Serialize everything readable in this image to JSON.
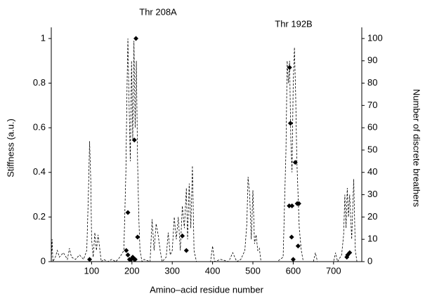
{
  "chart_data": {
    "type": "line",
    "x_label": "Amino–acid residue number",
    "y_label": "Stiffness (a.u.)",
    "y2_label": "Number of discrete breathers",
    "annotations": [
      "Thr 208A",
      "Thr 192B"
    ],
    "xlim": [
      0,
      770
    ],
    "xticks": [
      100,
      200,
      300,
      400,
      500,
      600,
      700
    ],
    "ylim": [
      0,
      1.05
    ],
    "yticks": [
      0,
      0.2,
      0.4,
      0.6,
      0.8,
      1
    ],
    "y2lim": [
      0,
      105
    ],
    "y2ticks": [
      0,
      10,
      20,
      30,
      40,
      50,
      60,
      70,
      80,
      90,
      100
    ],
    "series": [
      {
        "name": "Stiffness",
        "color": "#000000",
        "style": "dashed",
        "x": [
          0,
          2,
          4,
          10,
          15,
          20,
          30,
          40,
          45,
          50,
          60,
          70,
          80,
          88,
          92,
          95,
          98,
          100,
          104,
          108,
          112,
          116,
          120,
          124,
          130,
          140,
          150,
          160,
          170,
          180,
          185,
          188,
          190,
          193,
          196,
          199,
          202,
          205,
          208,
          211,
          214,
          217,
          220,
          225,
          230,
          245,
          250,
          255,
          260,
          265,
          270,
          275,
          285,
          290,
          295,
          300,
          305,
          310,
          315,
          320,
          325,
          330,
          335,
          338,
          342,
          346,
          350,
          354,
          360,
          380,
          395,
          400,
          405,
          420,
          440,
          450,
          460,
          470,
          480,
          485,
          488,
          492,
          496,
          500,
          504,
          508,
          512,
          516,
          520,
          560,
          575,
          582,
          585,
          588,
          591,
          594,
          597,
          600,
          603,
          606,
          609,
          612,
          615,
          620,
          625,
          650,
          655,
          660,
          700,
          705,
          710,
          720,
          725,
          728,
          731,
          734,
          737,
          740,
          745,
          750,
          754,
          758
        ],
        "values": [
          0,
          0.1,
          0,
          0.02,
          0.05,
          0.02,
          0.04,
          0.01,
          0.06,
          0.02,
          0.01,
          0.03,
          0.01,
          0.05,
          0.3,
          0.54,
          0.36,
          0.1,
          0.02,
          0.13,
          0.05,
          0.12,
          0.06,
          0,
          0.01,
          0,
          0.01,
          0,
          0.02,
          0.05,
          0.4,
          0.8,
          1.0,
          0.7,
          0.45,
          0.9,
          0.55,
          0.99,
          0.6,
          0.9,
          0.45,
          0.2,
          0.05,
          0,
          0.01,
          0,
          0.19,
          0.05,
          0.17,
          0.12,
          0.05,
          0,
          0.02,
          0.13,
          0.03,
          0.05,
          0.2,
          0.1,
          0.2,
          0.05,
          0.25,
          0.15,
          0.33,
          0.1,
          0.35,
          0.15,
          0.43,
          0.05,
          0,
          0,
          0,
          0.07,
          0,
          0.01,
          0,
          0.04,
          0,
          0.01,
          0.05,
          0.17,
          0.38,
          0.3,
          0.1,
          0.32,
          0.08,
          0.12,
          0.05,
          0.06,
          0,
          0,
          0.02,
          0.5,
          0.9,
          0.8,
          0.9,
          0.55,
          0.4,
          0.8,
          0.96,
          0.75,
          0.45,
          0.3,
          0.15,
          0.05,
          0,
          0,
          0.04,
          0,
          0,
          0.04,
          0,
          0.03,
          0.12,
          0.3,
          0.15,
          0.33,
          0.2,
          0.3,
          0.1,
          0.37,
          0.05,
          0
        ]
      },
      {
        "name": "Discrete breathers",
        "color": "#000000",
        "axis": "y2",
        "marker": "diamond",
        "x": [
          95,
          186,
          190,
          194,
          198,
          202,
          206,
          210,
          214,
          190,
          206,
          208,
          325,
          335,
          590,
          591,
          593,
          597,
          596,
          600,
          605,
          610,
          614,
          612,
          733,
          735,
          740
        ],
        "values": [
          1,
          5,
          3,
          1,
          1,
          2,
          54.5,
          100,
          11,
          22,
          1,
          1,
          11.5,
          5,
          25,
          87,
          62,
          25,
          11,
          1,
          44.5,
          26,
          26,
          7,
          2,
          3,
          4
        ]
      }
    ]
  }
}
